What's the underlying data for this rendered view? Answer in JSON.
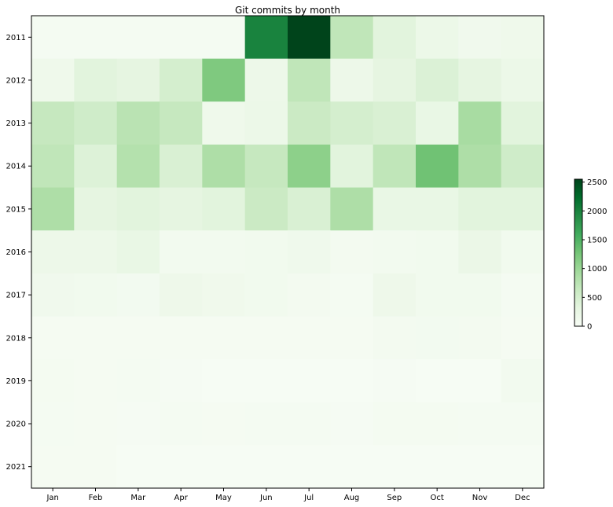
{
  "chart_data": {
    "type": "heatmap",
    "title": "Git commits by month",
    "xlabel": "",
    "ylabel": "",
    "x_categories": [
      "Jan",
      "Feb",
      "Mar",
      "Apr",
      "May",
      "Jun",
      "Jul",
      "Aug",
      "Sep",
      "Oct",
      "Nov",
      "Dec"
    ],
    "y_categories": [
      "2011",
      "2012",
      "2013",
      "2014",
      "2015",
      "2016",
      "2017",
      "2018",
      "2019",
      "2020",
      "2021"
    ],
    "values": [
      [
        50,
        50,
        50,
        50,
        50,
        2000,
        2550,
        700,
        350,
        200,
        120,
        150
      ],
      [
        150,
        350,
        300,
        500,
        1200,
        180,
        700,
        180,
        300,
        420,
        300,
        200
      ],
      [
        650,
        550,
        750,
        650,
        150,
        200,
        600,
        500,
        450,
        250,
        900,
        350
      ],
      [
        700,
        400,
        800,
        450,
        850,
        650,
        1100,
        350,
        700,
        1300,
        850,
        550
      ],
      [
        850,
        300,
        350,
        300,
        350,
        600,
        450,
        850,
        250,
        250,
        350,
        350
      ],
      [
        180,
        180,
        250,
        90,
        90,
        110,
        140,
        70,
        90,
        100,
        220,
        100
      ],
      [
        120,
        100,
        80,
        160,
        130,
        110,
        70,
        50,
        160,
        110,
        100,
        50
      ],
      [
        40,
        40,
        40,
        40,
        40,
        40,
        40,
        40,
        70,
        80,
        70,
        40
      ],
      [
        60,
        40,
        50,
        30,
        20,
        20,
        20,
        20,
        30,
        10,
        10,
        90
      ],
      [
        50,
        40,
        30,
        50,
        40,
        50,
        50,
        30,
        60,
        60,
        50,
        50
      ],
      [
        40,
        40,
        20,
        20,
        20,
        20,
        20,
        20,
        20,
        20,
        20,
        20
      ]
    ],
    "colorbar": {
      "min": 0,
      "max": 2550,
      "ticks": [
        0,
        500,
        1000,
        1500,
        2000,
        2500
      ]
    },
    "colormap": [
      "#f7fcf5",
      "#e5f5e0",
      "#c7e9c0",
      "#a1d99b",
      "#74c476",
      "#41ab5d",
      "#238b45",
      "#006d2c",
      "#00441b"
    ],
    "grid": false
  }
}
